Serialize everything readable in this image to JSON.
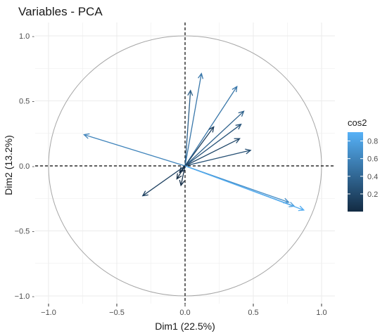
{
  "chart_data": {
    "type": "scatter",
    "subtype": "pca-variable-correlation-circle",
    "title": "Variables - PCA",
    "xlabel": "Dim1 (22.5%)",
    "ylabel": "Dim2 (13.2%)",
    "xlim": [
      -1.05,
      1.05
    ],
    "ylim": [
      -1.05,
      1.05
    ],
    "xticks": [
      -1.0,
      -0.5,
      0.0,
      0.5,
      1.0
    ],
    "yticks": [
      -1.0,
      -0.5,
      0.0,
      0.5,
      1.0
    ],
    "xtick_labels": [
      "−1.0",
      "−0.5",
      "0.0",
      "0.5",
      "1.0"
    ],
    "ytick_labels": [
      "−1.0 -",
      "−0.5 -",
      "0.0 -",
      "0.5 -",
      "1.0 -"
    ],
    "grid": true,
    "reference_lines": {
      "x": 0,
      "y": 0,
      "style": "dashed"
    },
    "unit_circle": true,
    "legend": {
      "title": "cos2",
      "position": "right",
      "type": "colorbar",
      "ticks": [
        0.2,
        0.4,
        0.6,
        0.8
      ],
      "tick_labels": [
        "0.2",
        "0.4",
        "0.6",
        "0.8"
      ],
      "range": [
        0.0,
        0.9
      ],
      "color_low": "#132B43",
      "color_high": "#56B1F7"
    },
    "vectors": [
      {
        "x": -0.74,
        "y": 0.24,
        "cos2": 0.6
      },
      {
        "x": 0.12,
        "y": 0.71,
        "cos2": 0.52
      },
      {
        "x": 0.04,
        "y": 0.58,
        "cos2": 0.34
      },
      {
        "x": 0.38,
        "y": 0.61,
        "cos2": 0.51
      },
      {
        "x": 0.43,
        "y": 0.42,
        "cos2": 0.36
      },
      {
        "x": 0.41,
        "y": 0.32,
        "cos2": 0.27
      },
      {
        "x": 0.21,
        "y": 0.3,
        "cos2": 0.13
      },
      {
        "x": 0.4,
        "y": 0.21,
        "cos2": 0.2
      },
      {
        "x": 0.48,
        "y": 0.12,
        "cos2": 0.24
      },
      {
        "x": 0.76,
        "y": -0.28,
        "cos2": 0.66
      },
      {
        "x": 0.8,
        "y": -0.31,
        "cos2": 0.73
      },
      {
        "x": 0.87,
        "y": -0.34,
        "cos2": 0.87
      },
      {
        "x": -0.31,
        "y": -0.23,
        "cos2": 0.15
      },
      {
        "x": -0.03,
        "y": -0.15,
        "cos2": 0.03
      },
      {
        "x": -0.06,
        "y": -0.1,
        "cos2": 0.02
      },
      {
        "x": -0.04,
        "y": -0.05,
        "cos2": 0.01
      }
    ]
  }
}
